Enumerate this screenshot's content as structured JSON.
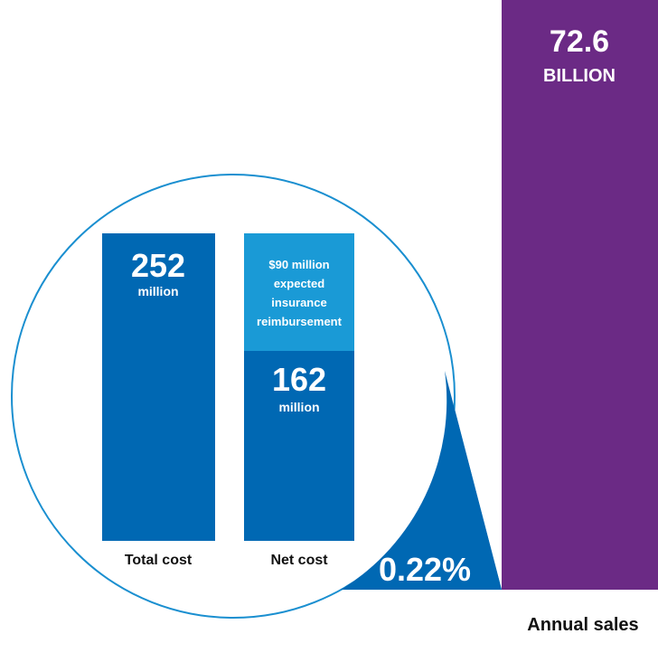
{
  "sales": {
    "value": "72.6",
    "unit": "BILLION",
    "label": "Annual sales"
  },
  "share": "0.22%",
  "total_cost": {
    "value": "252",
    "unit": "million",
    "label": "Total cost"
  },
  "net_cost": {
    "value": "162",
    "unit": "million",
    "label": "Net cost",
    "reimbursement": [
      "$90 million",
      "expected",
      "insurance",
      "reimbursement"
    ]
  }
}
